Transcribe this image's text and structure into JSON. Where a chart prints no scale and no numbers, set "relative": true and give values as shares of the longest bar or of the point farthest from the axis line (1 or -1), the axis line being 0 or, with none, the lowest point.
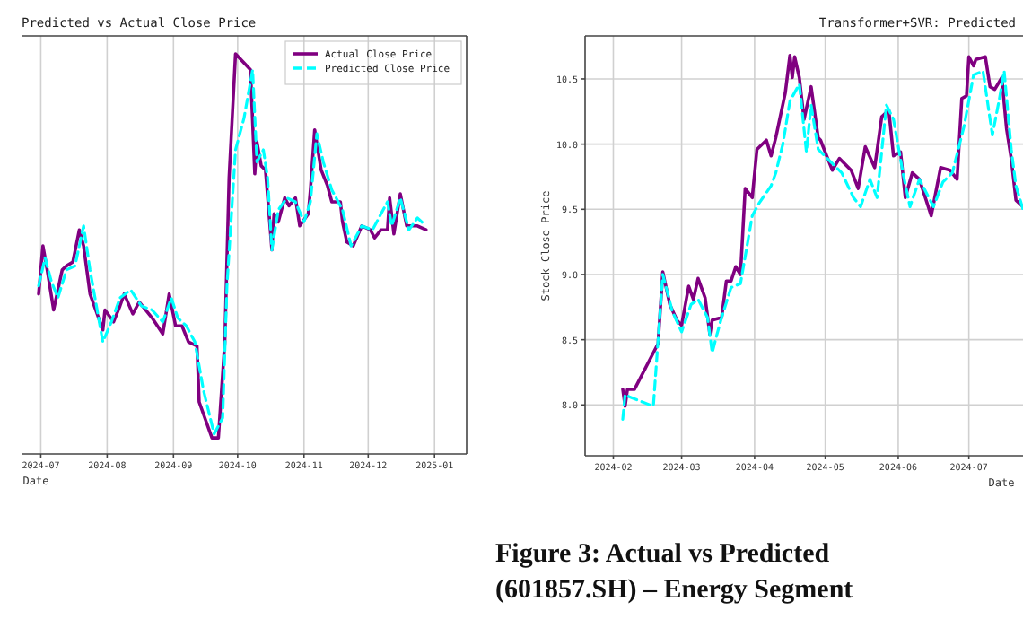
{
  "chart_data": [
    {
      "type": "line",
      "title": "Predicted vs Actual Close Price",
      "xlabel": "Date",
      "relative": true,
      "grid": "x",
      "legend": "top right",
      "xlim": [
        "2024-06-22",
        "2025-01-16"
      ],
      "xticks": [
        "2024-07",
        "2024-08",
        "2024-09",
        "2024-10",
        "2024-11",
        "2024-12",
        "2025-01"
      ],
      "series": [
        {
          "name": "Actual Close Price",
          "color": "#800080",
          "line_style": "solid",
          "x": [
            "2024-06-30",
            "2024-07-02",
            "2024-07-04",
            "2024-07-07",
            "2024-07-11",
            "2024-07-13",
            "2024-07-16",
            "2024-07-19",
            "2024-07-21",
            "2024-07-24",
            "2024-07-30",
            "2024-07-31",
            "2024-08-04",
            "2024-08-07",
            "2024-08-09",
            "2024-08-13",
            "2024-08-16",
            "2024-08-22",
            "2024-08-27",
            "2024-08-30",
            "2024-09-02",
            "2024-09-05",
            "2024-09-08",
            "2024-09-12",
            "2024-09-13",
            "2024-09-19",
            "2024-09-22",
            "2024-09-25",
            "2024-09-27",
            "2024-09-30",
            "2024-10-07",
            "2024-10-09",
            "2024-10-10",
            "2024-10-12",
            "2024-10-14",
            "2024-10-17",
            "2024-10-18",
            "2024-10-20",
            "2024-10-23",
            "2024-10-25",
            "2024-10-28",
            "2024-10-30",
            "2024-11-03",
            "2024-11-04",
            "2024-11-06",
            "2024-11-09",
            "2024-11-12",
            "2024-11-14",
            "2024-11-18",
            "2024-11-19",
            "2024-11-21",
            "2024-11-24",
            "2024-11-28",
            "2024-12-02",
            "2024-12-04",
            "2024-12-07",
            "2024-12-10",
            "2024-12-11",
            "2024-12-13",
            "2024-12-16",
            "2024-12-19",
            "2024-12-22",
            "2024-12-24",
            "2024-12-28"
          ],
          "values": [
            0.4,
            0.52,
            0.46,
            0.36,
            0.46,
            0.47,
            0.48,
            0.56,
            0.52,
            0.4,
            0.31,
            0.36,
            0.33,
            0.37,
            0.4,
            0.35,
            0.38,
            0.34,
            0.3,
            0.4,
            0.32,
            0.32,
            0.28,
            0.27,
            0.13,
            0.04,
            0.04,
            0.28,
            0.69,
            1,
            0.96,
            0.7,
            0.78,
            0.72,
            0.71,
            0.51,
            0.6,
            0.58,
            0.64,
            0.62,
            0.64,
            0.57,
            0.6,
            0.66,
            0.81,
            0.71,
            0.67,
            0.63,
            0.63,
            0.58,
            0.53,
            0.52,
            0.57,
            0.56,
            0.54,
            0.56,
            0.56,
            0.64,
            0.55,
            0.65,
            0.57,
            0.57,
            0.57,
            0.56
          ]
        },
        {
          "name": "Predicted Close Price",
          "color": "#00ffff",
          "line_style": "dashed",
          "x": [
            "2024-06-30",
            "2024-07-03",
            "2024-07-06",
            "2024-07-09",
            "2024-07-13",
            "2024-07-17",
            "2024-07-21",
            "2024-07-24",
            "2024-07-30",
            "2024-08-03",
            "2024-08-07",
            "2024-08-12",
            "2024-08-17",
            "2024-08-22",
            "2024-08-27",
            "2024-08-31",
            "2024-09-03",
            "2024-09-07",
            "2024-09-11",
            "2024-09-15",
            "2024-09-20",
            "2024-09-24",
            "2024-09-26",
            "2024-09-30",
            "2024-10-04",
            "2024-10-08",
            "2024-10-10",
            "2024-10-13",
            "2024-10-15",
            "2024-10-17",
            "2024-10-20",
            "2024-10-24",
            "2024-10-28",
            "2024-11-01",
            "2024-11-04",
            "2024-11-07",
            "2024-11-10",
            "2024-11-14",
            "2024-11-19",
            "2024-11-23",
            "2024-11-28",
            "2024-12-03",
            "2024-12-10",
            "2024-12-12",
            "2024-12-16",
            "2024-12-20",
            "2024-12-24",
            "2024-12-28"
          ],
          "values": [
            0.42,
            0.49,
            0.43,
            0.39,
            0.46,
            0.47,
            0.57,
            0.46,
            0.28,
            0.33,
            0.39,
            0.41,
            0.37,
            0.36,
            0.33,
            0.39,
            0.34,
            0.32,
            0.28,
            0.16,
            0.05,
            0.09,
            0.42,
            0.76,
            0.84,
            0.96,
            0.73,
            0.76,
            0.69,
            0.51,
            0.61,
            0.64,
            0.63,
            0.58,
            0.63,
            0.8,
            0.73,
            0.66,
            0.61,
            0.52,
            0.57,
            0.56,
            0.63,
            0.57,
            0.64,
            0.56,
            0.59,
            0.57
          ]
        }
      ]
    },
    {
      "type": "line",
      "title": "Transformer+SVR: Predicted",
      "xlabel": "Date",
      "ylabel": "Stock Close Price",
      "grid": true,
      "xlim": [
        "2024-01-20",
        "2024-07-24"
      ],
      "xticks": [
        "2024-02",
        "2024-03",
        "2024-04",
        "2024-05",
        "2024-06",
        "2024-07"
      ],
      "ylim": [
        7.61,
        10.83
      ],
      "yticks": [
        {
          "value": 8,
          "label": "8.0"
        },
        8.5,
        {
          "value": 9,
          "label": "9.0"
        },
        9.5,
        {
          "value": 10,
          "label": "10.0"
        },
        10.5
      ],
      "annotations": [
        "Figure 3: Actual vs Predicted",
        "(601857.SH) – Energy Segment"
      ],
      "series": [
        {
          "color": "#800080",
          "line_style": "solid",
          "x": [
            "2024-02-05",
            "2024-02-06",
            "2024-02-07",
            "2024-02-10",
            "2024-02-20",
            "2024-02-22",
            "2024-02-25",
            "2024-02-28",
            "2024-03-01",
            "2024-03-04",
            "2024-03-06",
            "2024-03-08",
            "2024-03-11",
            "2024-03-13",
            "2024-03-14",
            "2024-03-18",
            "2024-03-20",
            "2024-03-22",
            "2024-03-24",
            "2024-03-26",
            "2024-03-28",
            "2024-03-31",
            "2024-04-02",
            "2024-04-06",
            "2024-04-08",
            "2024-04-10",
            "2024-04-14",
            "2024-04-16",
            "2024-04-17",
            "2024-04-18",
            "2024-04-20",
            "2024-04-22",
            "2024-04-25",
            "2024-04-28",
            "2024-04-29",
            "2024-05-04",
            "2024-05-07",
            "2024-05-12",
            "2024-05-15",
            "2024-05-18",
            "2024-05-22",
            "2024-05-25",
            "2024-05-28",
            "2024-05-30",
            "2024-06-02",
            "2024-06-04",
            "2024-06-07",
            "2024-06-10",
            "2024-06-15",
            "2024-06-19",
            "2024-06-23",
            "2024-06-26",
            "2024-06-28",
            "2024-06-30",
            "2024-07-01",
            "2024-07-03",
            "2024-07-04",
            "2024-07-08",
            "2024-07-10",
            "2024-07-12",
            "2024-07-15",
            "2024-07-17",
            "2024-07-19",
            "2024-07-21",
            "2024-07-24"
          ],
          "values": [
            8.12,
            7.99,
            8.12,
            8.12,
            8.47,
            9.02,
            8.77,
            8.65,
            8.61,
            8.91,
            8.81,
            8.97,
            8.82,
            8.54,
            8.65,
            8.67,
            8.95,
            8.95,
            9.06,
            9.0,
            9.66,
            9.59,
            9.96,
            10.03,
            9.91,
            10.05,
            10.39,
            10.68,
            10.51,
            10.67,
            10.51,
            10.19,
            10.44,
            10.05,
            10.03,
            9.8,
            9.89,
            9.8,
            9.66,
            9.98,
            9.82,
            10.21,
            10.26,
            9.91,
            9.94,
            9.59,
            9.78,
            9.73,
            9.45,
            9.82,
            9.8,
            9.73,
            10.35,
            10.37,
            10.67,
            10.6,
            10.65,
            10.67,
            10.44,
            10.42,
            10.51,
            10.12,
            9.89,
            9.57,
            9.52
          ]
        },
        {
          "color": "#00ffff",
          "line_style": "dashed",
          "x": [
            "2024-02-05",
            "2024-02-06",
            "2024-02-08",
            "2024-02-18",
            "2024-02-22",
            "2024-02-26",
            "2024-03-01",
            "2024-03-05",
            "2024-03-08",
            "2024-03-12",
            "2024-03-14",
            "2024-03-16",
            "2024-03-18",
            "2024-03-22",
            "2024-03-26",
            "2024-03-31",
            "2024-04-03",
            "2024-04-08",
            "2024-04-10",
            "2024-04-13",
            "2024-04-16",
            "2024-04-20",
            "2024-04-23",
            "2024-04-25",
            "2024-04-28",
            "2024-05-03",
            "2024-05-08",
            "2024-05-13",
            "2024-05-16",
            "2024-05-20",
            "2024-05-23",
            "2024-05-27",
            "2024-05-30",
            "2024-06-03",
            "2024-06-06",
            "2024-06-10",
            "2024-06-16",
            "2024-06-20",
            "2024-06-24",
            "2024-06-29",
            "2024-07-03",
            "2024-07-07",
            "2024-07-11",
            "2024-07-14",
            "2024-07-16",
            "2024-07-19",
            "2024-07-21",
            "2024-07-24"
          ],
          "values": [
            7.89,
            8.08,
            8.06,
            7.99,
            9.0,
            8.72,
            8.56,
            8.77,
            8.81,
            8.67,
            8.4,
            8.54,
            8.67,
            8.9,
            8.93,
            9.45,
            9.55,
            9.68,
            9.78,
            10.0,
            10.33,
            10.46,
            9.94,
            10.3,
            9.96,
            9.87,
            9.78,
            9.59,
            9.52,
            9.73,
            9.59,
            10.3,
            10.19,
            9.78,
            9.52,
            9.73,
            9.52,
            9.71,
            9.78,
            10.14,
            10.53,
            10.56,
            10.07,
            10.35,
            10.56,
            9.96,
            9.68,
            9.5
          ]
        }
      ]
    }
  ]
}
